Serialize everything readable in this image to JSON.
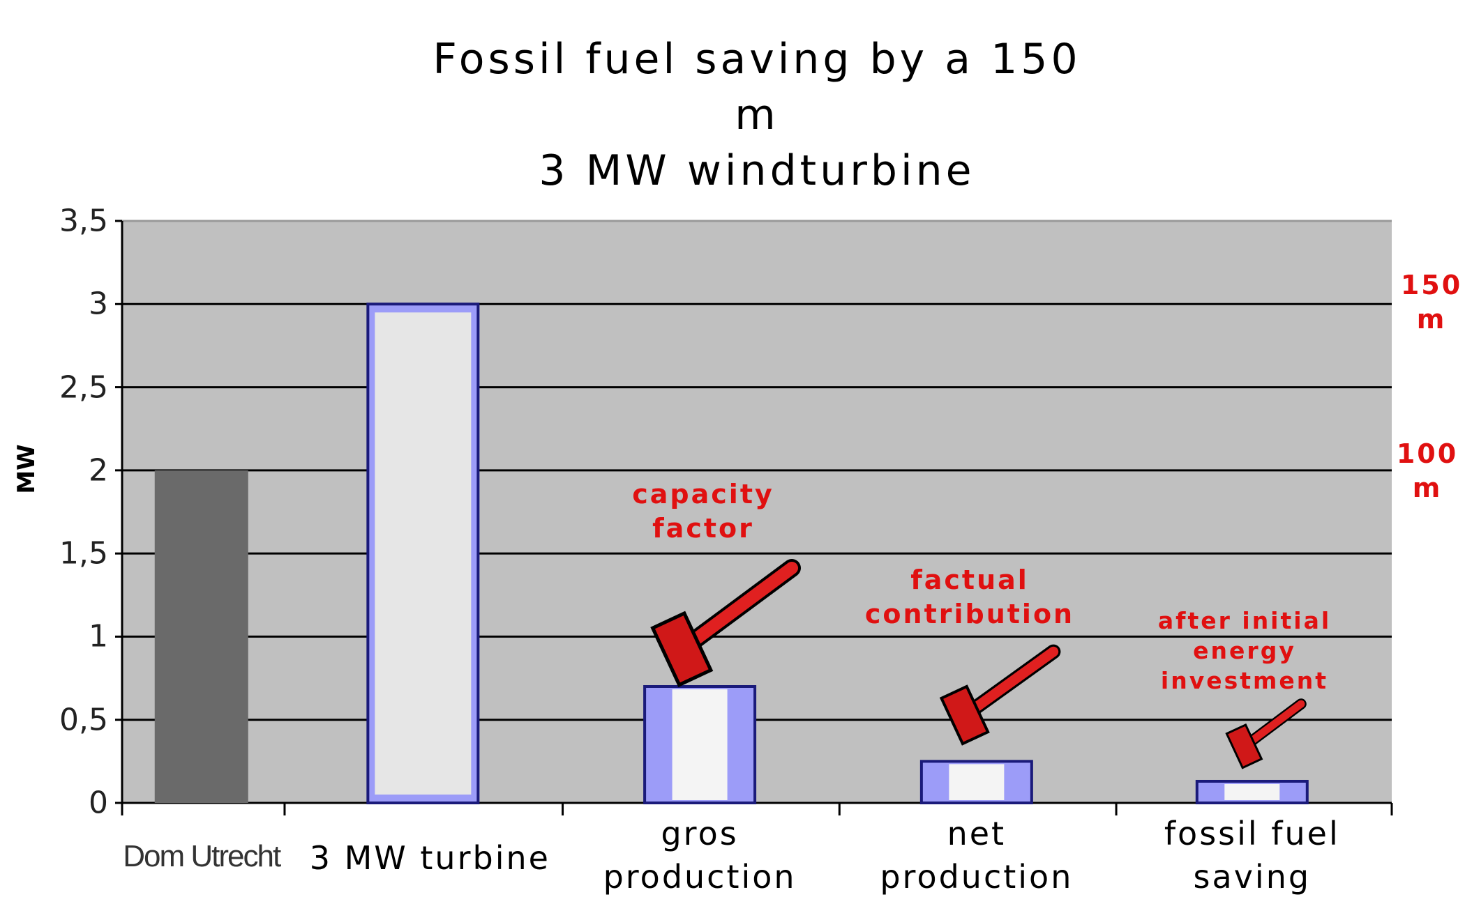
{
  "chart_data": {
    "type": "bar",
    "title": "Fossil fuel saving by a 150 m\n3 MW windturbine",
    "y_label": "MW",
    "categories": [
      "Dom Utrecht",
      "3 MW turbine",
      "gros\nproduction",
      "net\nproduction",
      "fossil fuel\nsaving"
    ],
    "values": [
      2,
      3,
      0.7,
      0.25,
      0.13
    ],
    "colors": [
      "#6a6a6a",
      "#9c9cf8",
      "#9c9cf8",
      "#9c9cf8",
      "#9c9cf8"
    ],
    "ylim": [
      0,
      3.5
    ],
    "yticks": [
      0,
      {
        "value": 0.5,
        "label": "0,5"
      },
      1,
      {
        "value": 1.5,
        "label": "1,5"
      },
      2,
      {
        "value": 2.5,
        "label": "2,5"
      },
      3,
      {
        "value": 3.5,
        "label": "3,5"
      }
    ],
    "grid": true,
    "annotations": [
      "capacity\nfactor",
      "factual\ncontribution",
      "after initial\nenergy\ninvestment",
      "150\nm",
      "100\nm"
    ]
  }
}
